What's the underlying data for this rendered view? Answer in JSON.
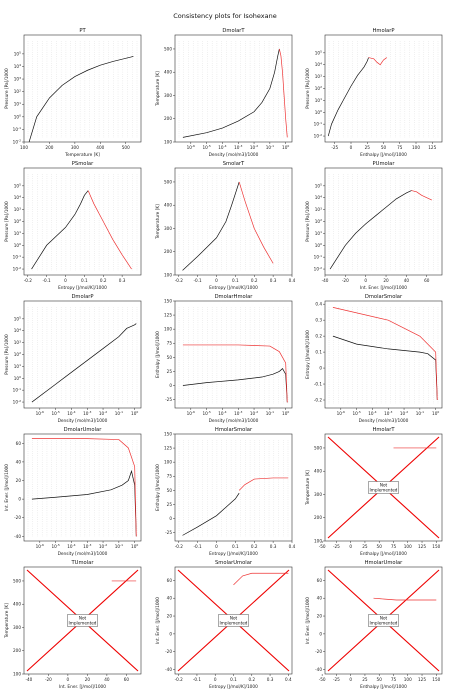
{
  "figure": {
    "suptitle": "Consistency plots for Isohexane",
    "not_implemented_label": "Not Implemented"
  },
  "chart_data": [
    {
      "id": "PT",
      "type": "scatter",
      "title": "PT",
      "xlabel": "Temperature [K]",
      "ylabel": "Pressure [Pa]/1000",
      "xlim": [
        100,
        560
      ],
      "ylim": [
        -2,
        6.5
      ],
      "ylog": true,
      "grid": false,
      "xticks": [
        100,
        200,
        300,
        400,
        500
      ],
      "yticks": [
        -2,
        -1,
        0,
        1,
        2,
        3,
        4,
        5
      ],
      "series": [
        {
          "type": "line",
          "x": [
            120,
            150,
            200,
            250,
            300,
            350,
            400,
            450,
            480,
            500,
            510,
            520,
            530
          ],
          "y": [
            -2,
            0,
            1.5,
            2.5,
            3.2,
            3.7,
            4.1,
            4.4,
            4.55,
            4.65,
            4.7,
            4.75,
            4.8
          ]
        }
      ]
    },
    {
      "id": "DmolarT",
      "type": "scatter",
      "title": "DmolarT",
      "xlabel": "Density [mol/m3]/1000",
      "ylabel": "Temperature [K]",
      "xlim": [
        -7,
        0.4
      ],
      "ylim": [
        100,
        560
      ],
      "xlog": true,
      "grid": false,
      "xticks": [
        -6,
        -5,
        -4,
        -3,
        -2,
        -1,
        0
      ],
      "yticks": [
        100,
        200,
        300,
        400,
        500
      ],
      "series": [
        {
          "type": "line",
          "x": [
            -6.5,
            -5,
            -4,
            -3,
            -2,
            -1.5,
            -1,
            -0.7,
            -0.5,
            -0.4
          ],
          "y": [
            120,
            140,
            160,
            190,
            230,
            270,
            330,
            400,
            470,
            500
          ]
        },
        {
          "type": "line",
          "x": [
            0.1,
            0.0,
            -0.1,
            -0.2,
            -0.3,
            -0.4
          ],
          "y": [
            120,
            200,
            300,
            400,
            470,
            500
          ]
        }
      ]
    },
    {
      "id": "HmolarP",
      "type": "scatter",
      "title": "HmolarP",
      "xlabel": "Enthalpy [J/mol]/1000",
      "ylabel": "Pressure [Pa]/1000",
      "xlim": [
        -40,
        140
      ],
      "ylim": [
        -2.5,
        6.5
      ],
      "ylog": true,
      "grid": false,
      "xticks": [
        -25,
        0,
        25,
        50,
        75,
        100,
        125
      ],
      "yticks": [
        -2,
        -1,
        0,
        1,
        2,
        3,
        4,
        5
      ],
      "series": [
        {
          "type": "line",
          "x": [
            -35,
            -30,
            -20,
            -10,
            0,
            10,
            20,
            25,
            27
          ],
          "y": [
            -2,
            -1,
            0.2,
            1.2,
            2.2,
            3.1,
            3.8,
            4.3,
            4.6
          ]
        },
        {
          "type": "line",
          "x": [
            27,
            35,
            40,
            45,
            50,
            55
          ],
          "y": [
            4.6,
            4.5,
            4.2,
            4.0,
            4.4,
            4.6
          ]
        }
      ]
    },
    {
      "id": "PSmolar",
      "type": "scatter",
      "title": "PSmolar",
      "xlabel": "Entropy [J/mol/K]/1000",
      "ylabel": "Pressure [Pa]/1000",
      "xlim": [
        -0.22,
        0.4
      ],
      "ylim": [
        -2.5,
        6.5
      ],
      "ylog": true,
      "grid": false,
      "xticks": [
        -0.2,
        -0.1,
        0.0,
        0.1,
        0.2,
        0.3
      ],
      "yticks": [
        -2,
        -1,
        0,
        1,
        2,
        3,
        4,
        5
      ],
      "series": [
        {
          "type": "line",
          "x": [
            -0.18,
            -0.1,
            0,
            0.05,
            0.08,
            0.1,
            0.12
          ],
          "y": [
            -2,
            0,
            1.5,
            2.6,
            3.5,
            4.2,
            4.6
          ]
        },
        {
          "type": "line",
          "x": [
            0.12,
            0.15,
            0.2,
            0.25,
            0.3,
            0.35
          ],
          "y": [
            4.6,
            3.5,
            2,
            0.5,
            -0.8,
            -2
          ]
        }
      ]
    },
    {
      "id": "SmolarT",
      "type": "scatter",
      "title": "SmolarT",
      "xlabel": "Entropy [J/mol/K]/1000",
      "ylabel": "Temperature [K]",
      "xlim": [
        -0.22,
        0.4
      ],
      "ylim": [
        100,
        560
      ],
      "grid": false,
      "xticks": [
        -0.2,
        -0.1,
        0.0,
        0.1,
        0.2,
        0.3,
        0.4
      ],
      "yticks": [
        100,
        200,
        300,
        400,
        500
      ],
      "series": [
        {
          "type": "line",
          "x": [
            -0.18,
            -0.1,
            0,
            0.05,
            0.08,
            0.1,
            0.12
          ],
          "y": [
            120,
            180,
            260,
            330,
            400,
            450,
            500
          ]
        },
        {
          "type": "line",
          "x": [
            0.12,
            0.15,
            0.2,
            0.25,
            0.3
          ],
          "y": [
            500,
            420,
            300,
            220,
            150
          ]
        }
      ]
    },
    {
      "id": "PUmolar",
      "type": "scatter",
      "title": "PUmolar",
      "xlabel": "Int. Ener. [J/mol]/1000",
      "ylabel": "Pressure [Pa]/1000",
      "xlim": [
        -40,
        75
      ],
      "ylim": [
        -2.5,
        6.5
      ],
      "ylog": true,
      "grid": false,
      "xticks": [
        -40,
        -20,
        0,
        20,
        40,
        60
      ],
      "yticks": [
        -2,
        -1,
        0,
        1,
        2,
        3,
        4,
        5
      ],
      "series": [
        {
          "type": "line",
          "x": [
            -35,
            -20,
            -10,
            0,
            10,
            20,
            30,
            40,
            45
          ],
          "y": [
            -2,
            0,
            1,
            1.8,
            2.5,
            3.2,
            3.9,
            4.4,
            4.6
          ]
        },
        {
          "type": "line",
          "x": [
            45,
            50,
            55,
            60,
            65
          ],
          "y": [
            4.6,
            4.5,
            4.2,
            4.0,
            3.8
          ]
        }
      ]
    },
    {
      "id": "DmolarP",
      "type": "scatter",
      "title": "DmolarP",
      "xlabel": "Density [mol/m3]/1000",
      "ylabel": "Pressure [Pa]/1000",
      "xlim": [
        -7,
        0.4
      ],
      "ylim": [
        -2.5,
        6.5
      ],
      "xlog": true,
      "ylog": true,
      "grid": false,
      "xticks": [
        -6,
        -5,
        -4,
        -3,
        -2,
        -1,
        0
      ],
      "yticks": [
        -2,
        -1,
        0,
        1,
        2,
        3,
        4,
        5
      ],
      "series": [
        {
          "type": "line",
          "x": [
            -6.5,
            -5,
            -4,
            -3,
            -2,
            -1,
            -0.5,
            0,
            0.1
          ],
          "y": [
            -2,
            -0.5,
            0.5,
            1.5,
            2.5,
            3.5,
            4.2,
            4.5,
            4.6
          ]
        }
      ]
    },
    {
      "id": "DmolarHmolar",
      "type": "scatter",
      "title": "DmolarHmolar",
      "xlabel": "Density [mol/m3]/1000",
      "ylabel": "Enthalpy [J/mol]/1000",
      "xlim": [
        -7,
        0.4
      ],
      "ylim": [
        -40,
        150
      ],
      "xlog": true,
      "grid": false,
      "xticks": [
        -6,
        -5,
        -4,
        -3,
        -2,
        -1,
        0
      ],
      "yticks": [
        -25,
        0,
        25,
        50,
        75,
        100,
        125,
        150
      ],
      "series": [
        {
          "type": "line",
          "x": [
            -6.5,
            -5,
            -3,
            -1.5,
            -0.8,
            -0.4,
            -0.2,
            0,
            0.1
          ],
          "y": [
            0,
            5,
            10,
            15,
            20,
            25,
            30,
            20,
            -30
          ]
        },
        {
          "type": "line",
          "x": [
            -6.5,
            -3,
            -1,
            -0.4,
            0,
            0.1
          ],
          "y": [
            72,
            72,
            70,
            60,
            40,
            -30
          ]
        }
      ]
    },
    {
      "id": "DmolarSmolar",
      "type": "scatter",
      "title": "DmolarSmolar",
      "xlabel": "Density [mol/m3]/1000",
      "ylabel": "Entropy [J/mol/K]/1000",
      "xlim": [
        -7,
        0.4
      ],
      "ylim": [
        -0.25,
        0.42
      ],
      "xlog": true,
      "grid": false,
      "xticks": [
        -6,
        -5,
        -4,
        -3,
        -2,
        -1,
        0
      ],
      "yticks": [
        -0.2,
        -0.1,
        0.0,
        0.1,
        0.2,
        0.3,
        0.4
      ],
      "series": [
        {
          "type": "line",
          "x": [
            -6.5,
            -5,
            -3,
            -1,
            -0.5,
            0,
            0.1
          ],
          "y": [
            0.2,
            0.15,
            0.12,
            0.1,
            0.09,
            0.05,
            -0.2
          ]
        },
        {
          "type": "line",
          "x": [
            -6.5,
            -3,
            -1,
            -0.5,
            0,
            0.1
          ],
          "y": [
            0.38,
            0.3,
            0.2,
            0.15,
            0.1,
            -0.2
          ]
        }
      ]
    },
    {
      "id": "DmolarUmolar",
      "type": "scatter",
      "title": "DmolarUmolar",
      "xlabel": "Density [mol/m3]/1000",
      "ylabel": "Int. Ener. [J/mol]/1000",
      "xlim": [
        -7,
        0.4
      ],
      "ylim": [
        -45,
        70
      ],
      "xlog": true,
      "grid": false,
      "xticks": [
        -6,
        -5,
        -4,
        -3,
        -2,
        -1,
        0
      ],
      "yticks": [
        -40,
        -20,
        0,
        20,
        40,
        60
      ],
      "series": [
        {
          "type": "line",
          "x": [
            -6.5,
            -5,
            -3,
            -1.5,
            -0.8,
            -0.4,
            -0.2,
            0,
            0.1
          ],
          "y": [
            0,
            2,
            5,
            10,
            15,
            20,
            30,
            15,
            -40
          ]
        },
        {
          "type": "line",
          "x": [
            -6.5,
            -3,
            -1,
            -0.4,
            0,
            0.1
          ],
          "y": [
            65,
            65,
            64,
            55,
            35,
            -40
          ]
        }
      ]
    },
    {
      "id": "HmolarSmolar",
      "type": "scatter",
      "title": "HmolarSmolar",
      "xlabel": "Entropy [J/mol/K]/1000",
      "ylabel": "Enthalpy [J/mol]/1000",
      "xlim": [
        -0.22,
        0.4
      ],
      "ylim": [
        -40,
        150
      ],
      "grid": false,
      "xticks": [
        -0.2,
        -0.1,
        0.0,
        0.1,
        0.2,
        0.3,
        0.4
      ],
      "yticks": [
        -25,
        0,
        25,
        50,
        75,
        100,
        125,
        150
      ],
      "series": [
        {
          "type": "line",
          "x": [
            -0.18,
            -0.1,
            0,
            0.05,
            0.1,
            0.12
          ],
          "y": [
            -30,
            -15,
            5,
            20,
            35,
            45
          ]
        },
        {
          "type": "line",
          "x": [
            0.12,
            0.15,
            0.2,
            0.3,
            0.38
          ],
          "y": [
            50,
            60,
            70,
            72,
            72
          ]
        }
      ]
    },
    {
      "id": "HmolarT",
      "type": "scatter",
      "title": "HmolarT",
      "xlabel": "Enthalpy [J/mol]/1000",
      "ylabel": "Temperature [K]",
      "xlim": [
        -45,
        160
      ],
      "ylim": [
        100,
        560
      ],
      "grid": false,
      "xticks": [
        -50,
        -25,
        0,
        25,
        50,
        75,
        100,
        125,
        150
      ],
      "yticks": [
        100,
        200,
        300,
        400,
        500
      ],
      "series": [
        {
          "type": "line",
          "x": [
            75,
            100,
            125,
            150
          ],
          "y": [
            500,
            500,
            500,
            500
          ]
        }
      ]
    },
    {
      "id": "TUmolar",
      "type": "scatter",
      "title": "TUmolar",
      "xlabel": "Int. Ener. [J/mol]/1000",
      "ylabel": "Temperature [K]",
      "xlim": [
        -45,
        75
      ],
      "ylim": [
        100,
        560
      ],
      "grid": false,
      "xticks": [
        -40,
        -20,
        0,
        20,
        40,
        60
      ],
      "yticks": [
        100,
        200,
        300,
        400,
        500
      ],
      "series": [
        {
          "type": "line",
          "x": [
            45,
            55,
            65,
            70
          ],
          "y": [
            500,
            500,
            500,
            500
          ]
        }
      ]
    },
    {
      "id": "SmolarUmolar",
      "type": "scatter",
      "title": "SmolarUmolar",
      "xlabel": "Entropy [J/mol/K]/1000",
      "ylabel": "Int. Ener. [J/mol]/1000",
      "xlim": [
        -0.22,
        0.42
      ],
      "ylim": [
        -45,
        75
      ],
      "grid": false,
      "xticks": [
        -0.2,
        -0.1,
        0.0,
        0.1,
        0.2,
        0.3,
        0.4
      ],
      "yticks": [
        -40,
        -20,
        0,
        20,
        40,
        60
      ],
      "series": [
        {
          "type": "line",
          "x": [
            0.1,
            0.15,
            0.2,
            0.3,
            0.4
          ],
          "y": [
            55,
            65,
            68,
            68,
            68
          ]
        }
      ]
    },
    {
      "id": "HmolarUmolar",
      "type": "scatter",
      "title": "HmolarUmolar",
      "xlabel": "Enthalpy [J/mol]/1000",
      "ylabel": "Int. Ener. [J/mol]/1000",
      "xlim": [
        -45,
        160
      ],
      "ylim": [
        -45,
        75
      ],
      "grid": false,
      "xticks": [
        -50,
        -25,
        0,
        25,
        50,
        75,
        100,
        125,
        150
      ],
      "yticks": [
        -40,
        -20,
        0,
        20,
        40,
        60
      ],
      "series": [
        {
          "type": "line",
          "x": [
            40,
            60,
            80,
            100,
            125,
            150
          ],
          "y": [
            40,
            39,
            38,
            38,
            38,
            38
          ]
        }
      ]
    }
  ]
}
